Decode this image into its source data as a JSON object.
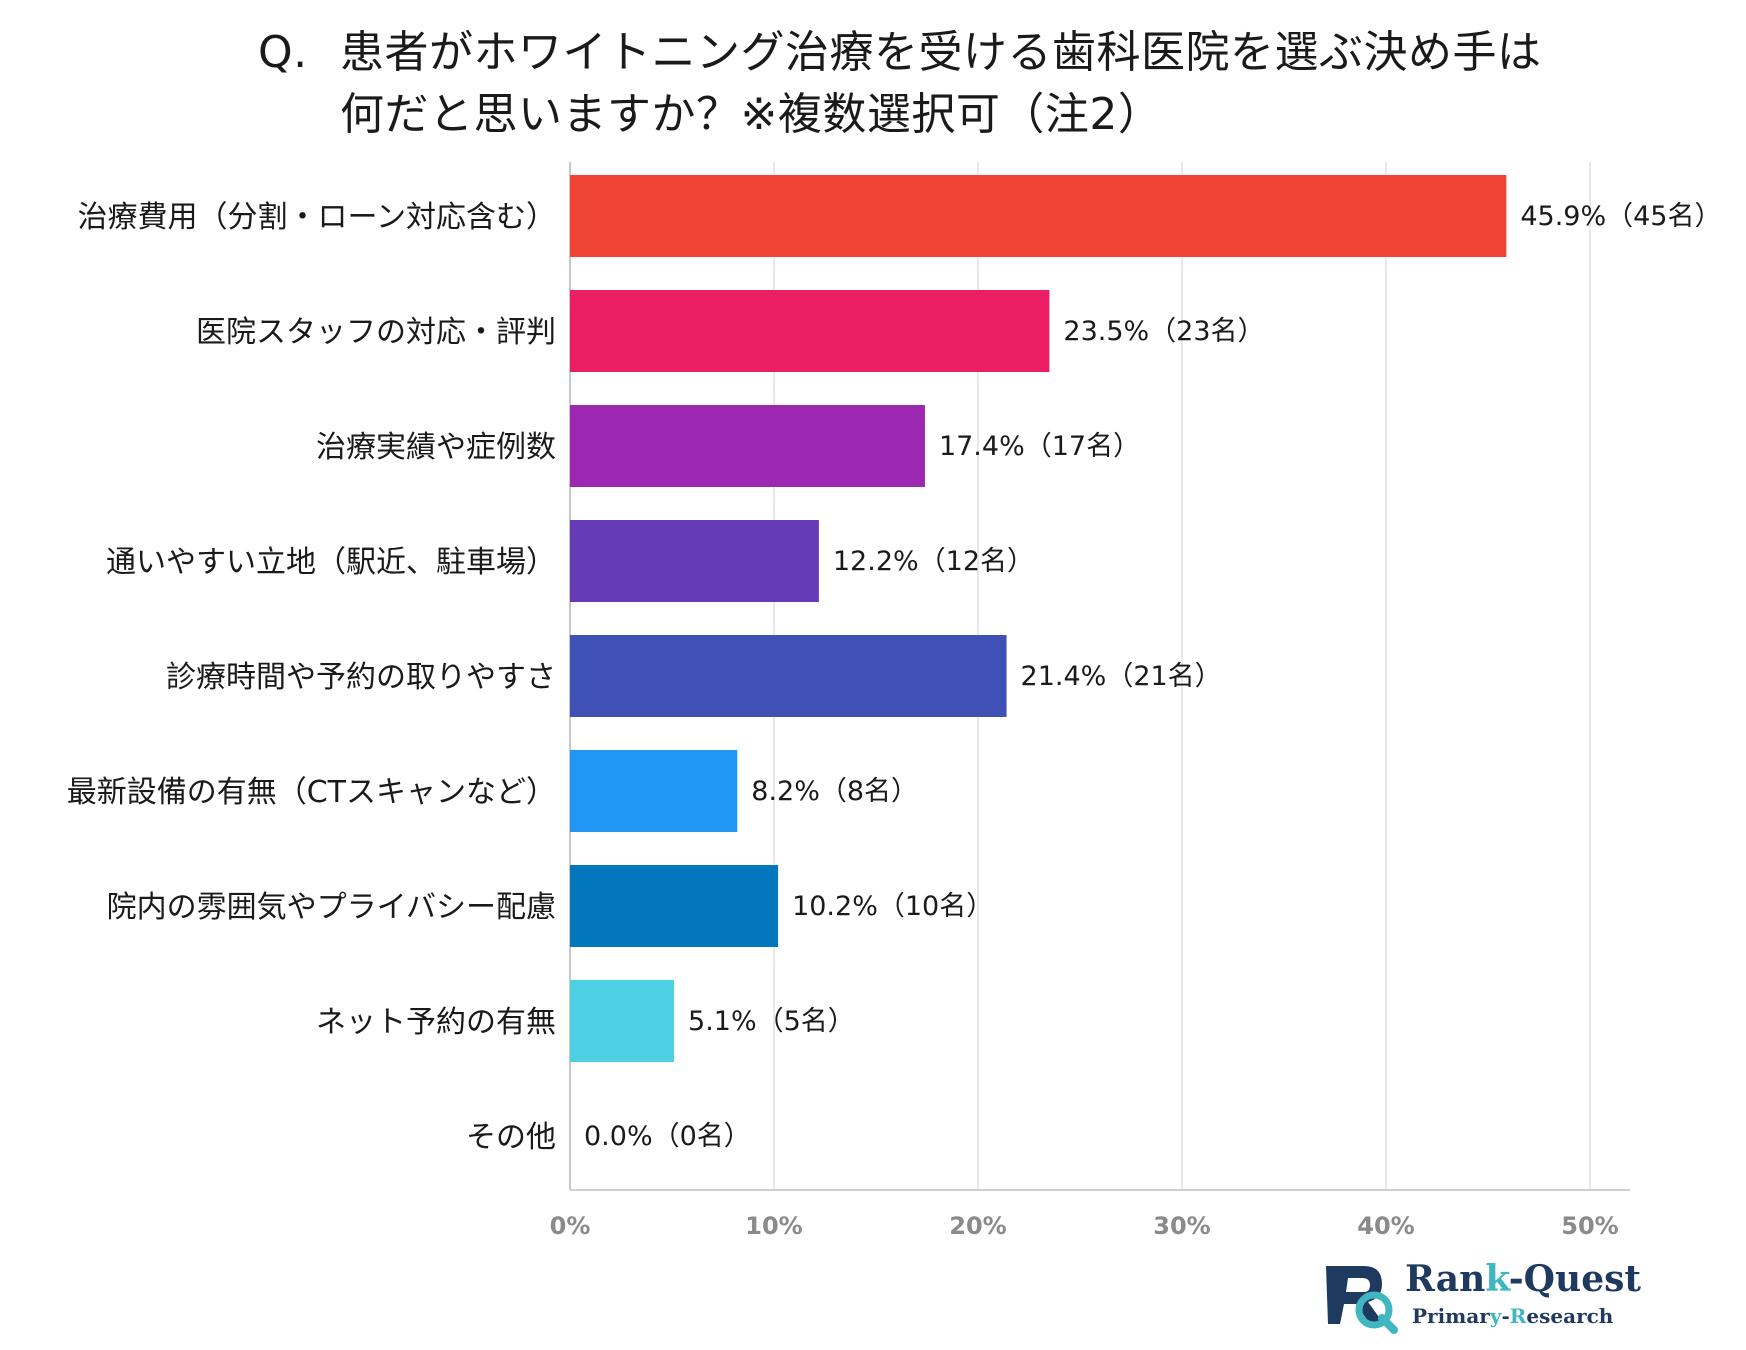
{
  "title": {
    "prefix": "Q.",
    "line1": "患者がホワイトニング治療を受ける歯科医院を選ぶ決め手は",
    "line2": "何だと思いますか？※複数選択可（注2）"
  },
  "chart_data": {
    "type": "bar",
    "orientation": "horizontal",
    "title": "Q. 患者がホワイトニング治療を受ける歯科医院を選ぶ決め手は何だと思いますか？※複数選択可（注2）",
    "xlabel": "",
    "ylabel": "",
    "xlim": [
      0,
      50
    ],
    "grid": true,
    "x_ticks": [
      0,
      10,
      20,
      30,
      40,
      50
    ],
    "tick_labels": [
      "0%",
      "10%",
      "20%",
      "30%",
      "40%",
      "50%"
    ],
    "categories": [
      "治療費用（分割・ローン対応含む）",
      "医院スタッフの対応・評判",
      "治療実績や症例数",
      "通いやすい立地（駅近、駐車場）",
      "診療時間や予約の取りやすさ",
      "最新設備の有無（CTスキャンなど）",
      "院内の雰囲気やプライバシー配慮",
      "ネット予約の有無",
      "その他"
    ],
    "values": [
      45.9,
      23.5,
      17.4,
      12.2,
      21.4,
      8.2,
      10.2,
      5.1,
      0.0
    ],
    "data_labels": [
      "45.9%（45名）",
      "23.5%（23名）",
      "17.4%（17名）",
      "12.2%（12名）",
      "21.4%（21名）",
      "8.2%（8名）",
      "10.2%（10名）",
      "5.1%（5名）",
      "0.0%（0名）"
    ],
    "colors": [
      "#f04436",
      "#e91e63",
      "#9c27b0",
      "#673ab7",
      "#3f51b5",
      "#2196f3",
      "#0277bd",
      "#4dd0e1",
      "#999999"
    ]
  },
  "logo": {
    "brand_part1": "Ran",
    "brand_part2": "k",
    "brand_part3": "-Quest",
    "sub_part1": "Primar",
    "sub_part2": "y",
    "sub_part3": "-",
    "sub_part4": "R",
    "sub_part5": "esearch",
    "primary_color": "#1f3a5f",
    "accent_color": "#3fb6c0"
  }
}
